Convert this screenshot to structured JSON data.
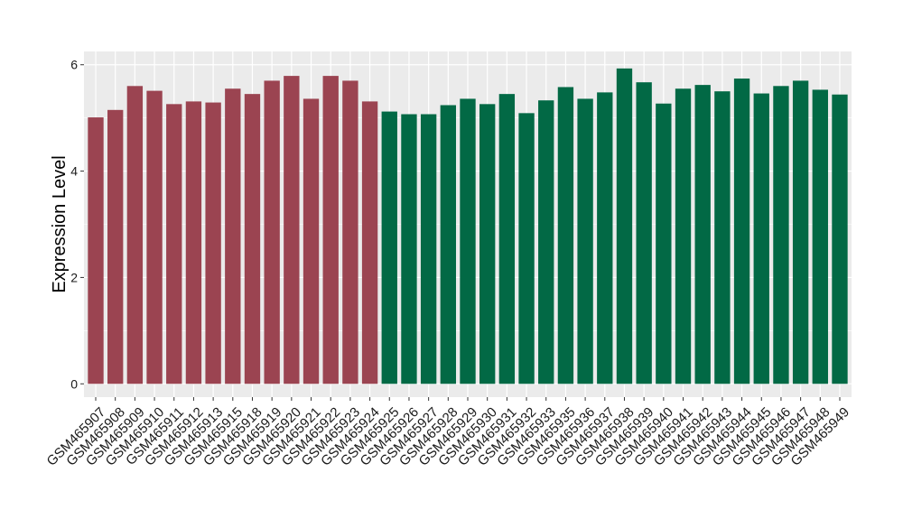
{
  "chart_data": {
    "type": "bar",
    "title": "",
    "xlabel": "",
    "ylabel": "Expression Level",
    "ylim": [
      -0.25,
      6.25
    ],
    "yticks": [
      0,
      2,
      4,
      6
    ],
    "grid": true,
    "legend": "none",
    "colors": {
      "panel_background": "#ebebeb",
      "grid_line": "#ffffff",
      "text": "#1a1a1a"
    },
    "categories": [
      "GSM465907",
      "GSM465908",
      "GSM465909",
      "GSM465910",
      "GSM465911",
      "GSM465912",
      "GSM465913",
      "GSM465915",
      "GSM465918",
      "GSM465919",
      "GSM465920",
      "GSM465921",
      "GSM465922",
      "GSM465923",
      "GSM465924",
      "GSM465925",
      "GSM465926",
      "GSM465927",
      "GSM465928",
      "GSM465929",
      "GSM465930",
      "GSM465931",
      "GSM465932",
      "GSM465933",
      "GSM465935",
      "GSM465936",
      "GSM465937",
      "GSM465938",
      "GSM465939",
      "GSM465940",
      "GSM465941",
      "GSM465942",
      "GSM465943",
      "GSM465944",
      "GSM465945",
      "GSM465946",
      "GSM465947",
      "GSM465948",
      "GSM465949"
    ],
    "values": [
      5.01,
      5.15,
      5.6,
      5.51,
      5.26,
      5.31,
      5.29,
      5.55,
      5.45,
      5.7,
      5.79,
      5.36,
      5.79,
      5.7,
      5.31,
      5.12,
      5.07,
      5.07,
      5.24,
      5.36,
      5.26,
      5.45,
      5.09,
      5.33,
      5.58,
      5.36,
      5.48,
      5.93,
      5.67,
      5.27,
      5.55,
      5.62,
      5.5,
      5.74,
      5.46,
      5.6,
      5.7,
      5.53,
      5.44
    ],
    "bar_colors": [
      "#9b4451",
      "#9b4451",
      "#9b4451",
      "#9b4451",
      "#9b4451",
      "#9b4451",
      "#9b4451",
      "#9b4451",
      "#9b4451",
      "#9b4451",
      "#9b4451",
      "#9b4451",
      "#9b4451",
      "#9b4451",
      "#9b4451",
      "#026945",
      "#026945",
      "#026945",
      "#026945",
      "#026945",
      "#026945",
      "#026945",
      "#026945",
      "#026945",
      "#026945",
      "#026945",
      "#026945",
      "#026945",
      "#026945",
      "#026945",
      "#026945",
      "#026945",
      "#026945",
      "#026945",
      "#026945",
      "#026945",
      "#026945",
      "#026945",
      "#026945"
    ]
  }
}
